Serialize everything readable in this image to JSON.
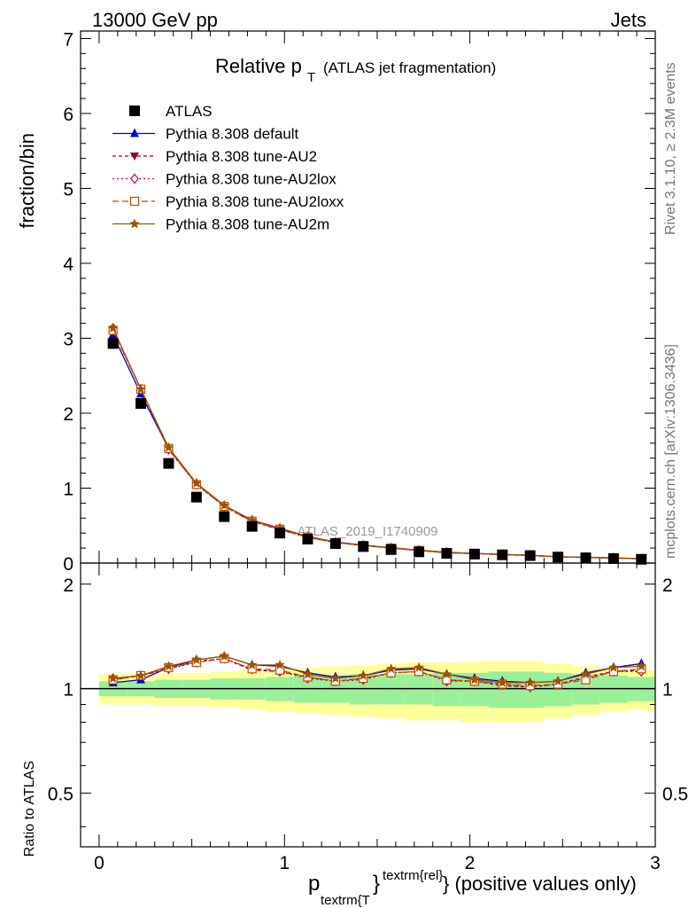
{
  "header": {
    "left": "13000 GeV pp",
    "right": "Jets",
    "side_top": "Rivet 3.1.10, ≥ 2.3M events",
    "side_bottom": "mcplots.cern.ch [arXiv:1306.3436]"
  },
  "title_main": "Relative p",
  "title_sub": "T",
  "title_rest": "(ATLAS jet fragmentation)",
  "watermark": "ATLAS_2019_I1740909",
  "ylabel_main": "fraction/bin",
  "ylabel_ratio": "Ratio to ATLAS",
  "xlabel": {
    "p": "p",
    "sub": "textrm{T",
    "brace": "}",
    "sup": "textrm{rel}",
    "tail": "} (positive values only)"
  },
  "legend": [
    {
      "label": "ATLAS",
      "color": "#000000",
      "marker": "square-filled",
      "dash": ""
    },
    {
      "label": "Pythia 8.308 default",
      "color": "#0000cc",
      "marker": "triangle-up",
      "dash": ""
    },
    {
      "label": "Pythia 8.308 tune-AU2",
      "color": "#990033",
      "marker": "triangle-down",
      "dash": "4,3"
    },
    {
      "label": "Pythia 8.308 tune-AU2lox",
      "color": "#cc0055",
      "marker": "diamond-open",
      "dash": "2,3"
    },
    {
      "label": "Pythia 8.308 tune-AU2loxx",
      "color": "#cc4400",
      "marker": "square-open",
      "dash": "7,4"
    },
    {
      "label": "Pythia 8.308 tune-AU2m",
      "color": "#995500",
      "marker": "star",
      "dash": ""
    }
  ],
  "chart_data": {
    "type": "line",
    "x": [
      0.075,
      0.225,
      0.375,
      0.525,
      0.675,
      0.825,
      0.975,
      1.125,
      1.275,
      1.425,
      1.575,
      1.725,
      1.875,
      2.025,
      2.175,
      2.325,
      2.475,
      2.625,
      2.775,
      2.925
    ],
    "xlim": [
      -0.1,
      3.0
    ],
    "ylim": [
      0,
      7.1
    ],
    "ratio_ylim": [
      0.35,
      2.3
    ],
    "xticks": [
      "0",
      "1",
      "2",
      "3"
    ],
    "yticks": [
      "0",
      "1",
      "2",
      "3",
      "4",
      "5",
      "6",
      "7"
    ],
    "ratio_yticks": [
      "0.5",
      "1",
      "2"
    ],
    "data": [
      2.93,
      2.13,
      1.33,
      0.88,
      0.62,
      0.49,
      0.4,
      0.32,
      0.26,
      0.22,
      0.18,
      0.15,
      0.13,
      0.12,
      0.11,
      0.1,
      0.08,
      0.07,
      0.06,
      0.05
    ],
    "band_inner": [
      0.05,
      0.05,
      0.06,
      0.06,
      0.07,
      0.07,
      0.08,
      0.09,
      0.09,
      0.1,
      0.1,
      0.1,
      0.11,
      0.11,
      0.12,
      0.12,
      0.11,
      0.1,
      0.09,
      0.08
    ],
    "band_outer": [
      0.1,
      0.1,
      0.11,
      0.11,
      0.12,
      0.13,
      0.14,
      0.15,
      0.16,
      0.17,
      0.18,
      0.19,
      0.19,
      0.2,
      0.2,
      0.2,
      0.18,
      0.16,
      0.14,
      0.13
    ],
    "series": [
      {
        "name": "Pythia 8.308 default",
        "ratio": [
          1.04,
          1.06,
          1.15,
          1.21,
          1.24,
          1.17,
          1.16,
          1.11,
          1.08,
          1.09,
          1.13,
          1.14,
          1.1,
          1.07,
          1.05,
          1.04,
          1.05,
          1.11,
          1.15,
          1.18
        ]
      },
      {
        "name": "Pythia 8.308 tune-AU2",
        "ratio": [
          1.06,
          1.09,
          1.14,
          1.2,
          1.22,
          1.13,
          1.12,
          1.08,
          1.05,
          1.07,
          1.11,
          1.12,
          1.06,
          1.05,
          1.02,
          1.01,
          1.03,
          1.08,
          1.12,
          1.13
        ]
      },
      {
        "name": "Pythia 8.308 tune-AU2lox",
        "ratio": [
          1.07,
          1.09,
          1.14,
          1.19,
          1.22,
          1.14,
          1.12,
          1.07,
          1.05,
          1.06,
          1.11,
          1.12,
          1.05,
          1.05,
          1.03,
          1.01,
          1.03,
          1.07,
          1.12,
          1.12
        ]
      },
      {
        "name": "Pythia 8.308 tune-AU2loxx",
        "ratio": [
          1.06,
          1.09,
          1.15,
          1.19,
          1.22,
          1.14,
          1.13,
          1.08,
          1.05,
          1.07,
          1.11,
          1.12,
          1.06,
          1.05,
          1.03,
          1.02,
          1.03,
          1.06,
          1.12,
          1.14
        ]
      },
      {
        "name": "Pythia 8.308 tune-AU2m",
        "ratio": [
          1.07,
          1.09,
          1.16,
          1.21,
          1.24,
          1.17,
          1.17,
          1.1,
          1.07,
          1.09,
          1.14,
          1.15,
          1.1,
          1.06,
          1.04,
          1.04,
          1.05,
          1.1,
          1.15,
          1.16
        ]
      }
    ]
  }
}
